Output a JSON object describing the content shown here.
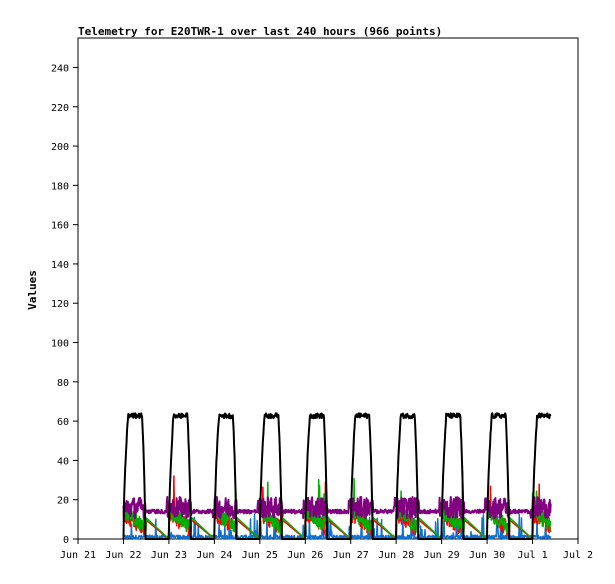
{
  "chart_data": {
    "type": "line",
    "title": "Telemetry for E20TWR-1 over last 240 hours (966 points)",
    "xlabel": "",
    "ylabel": "Values",
    "ylim": [
      0,
      255
    ],
    "yticks": [
      0,
      20,
      40,
      60,
      80,
      100,
      120,
      140,
      160,
      180,
      200,
      220,
      240
    ],
    "xlim_days": [
      0,
      11
    ],
    "xticks": [
      {
        "day": 0,
        "label": "Jun 21"
      },
      {
        "day": 1,
        "label": "Jun 22"
      },
      {
        "day": 2,
        "label": "Jun 23"
      },
      {
        "day": 3,
        "label": "Jun 24"
      },
      {
        "day": 4,
        "label": "Jun 25"
      },
      {
        "day": 5,
        "label": "Jun 26"
      },
      {
        "day": 6,
        "label": "Jun 27"
      },
      {
        "day": 7,
        "label": "Jun 28"
      },
      {
        "day": 8,
        "label": "Jun 29"
      },
      {
        "day": 9,
        "label": "Jun 30"
      },
      {
        "day": 10,
        "label": "Jul 1"
      },
      {
        "day": 11,
        "label": "Jul 2"
      }
    ],
    "grid": false,
    "legend": "none",
    "series": [
      {
        "color": "#000000",
        "approx_daily_peak": 64,
        "shape": "daytime plateau, zero at night",
        "start_day": 1.0,
        "end_day": 10.4
      },
      {
        "color": "#800080",
        "approx_level": 16,
        "range": [
          10,
          22
        ],
        "shape": "continuous noisy band",
        "start_day": 1.0,
        "end_day": 10.4
      },
      {
        "color": "#00b000",
        "approx_level": 9,
        "range": [
          0,
          32
        ],
        "shape": "noisy, decays daily",
        "start_day": 1.0,
        "end_day": 10.4
      },
      {
        "color": "#ff0000",
        "approx_level": 8,
        "range": [
          0,
          36
        ],
        "shape": "noisy, decays daily",
        "start_day": 1.0,
        "end_day": 10.4
      },
      {
        "color": "#1070d0",
        "approx_level": 1,
        "range": [
          0,
          13
        ],
        "shape": "near zero with short spikes",
        "start_day": 1.0,
        "end_day": 10.4
      }
    ]
  }
}
